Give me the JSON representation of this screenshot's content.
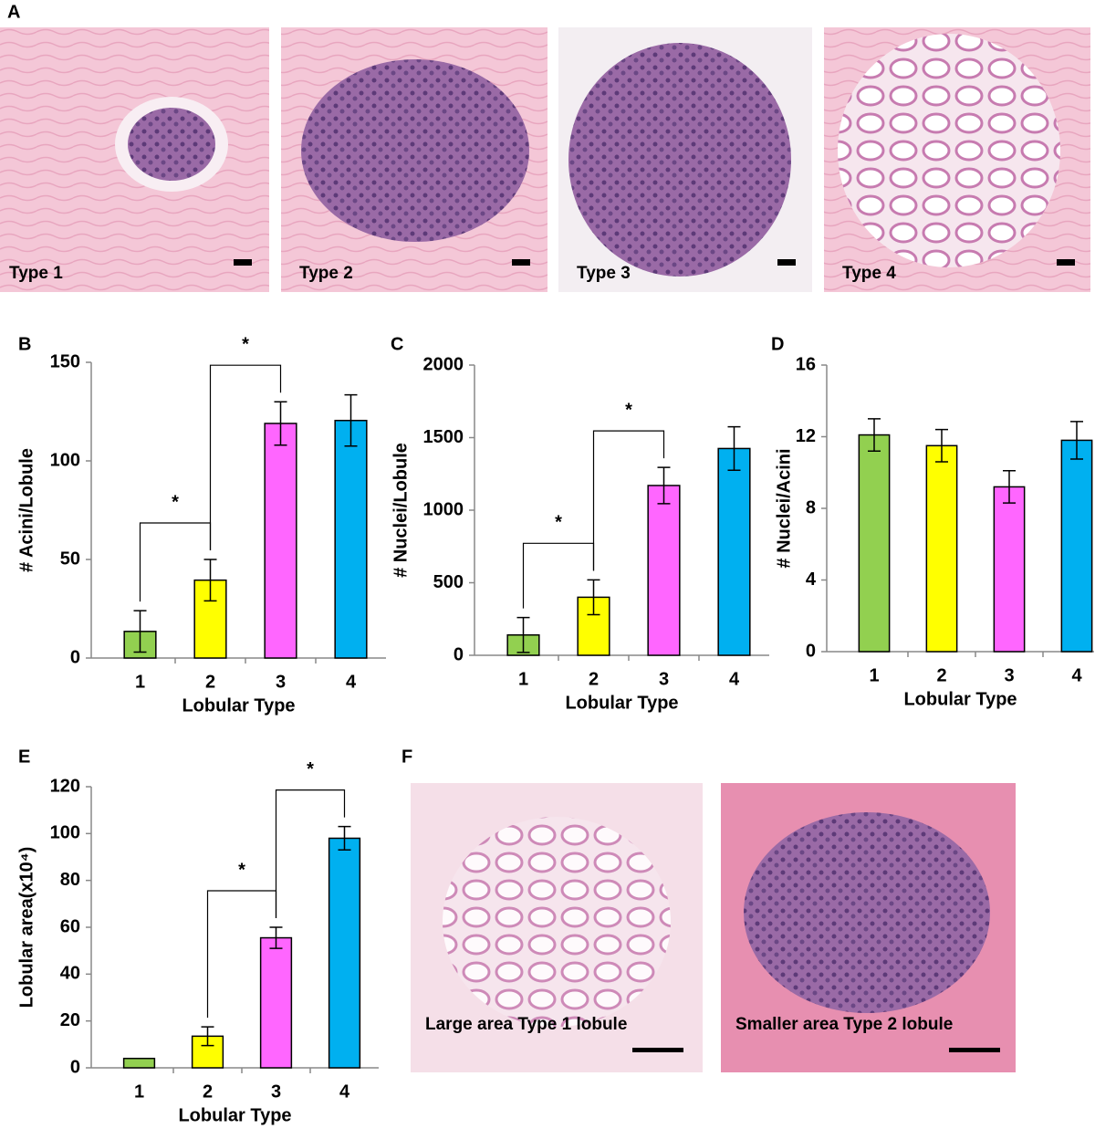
{
  "panel_labels": [
    "A",
    "B",
    "C",
    "D",
    "E",
    "F"
  ],
  "images_a": [
    "Type 1",
    "Type 2",
    "Type 3",
    "Type 4"
  ],
  "images_f": [
    "Large  area Type 1 lobule",
    "Smaller  area Type 2 lobule"
  ],
  "chart_data": [
    {
      "type": "bar",
      "categories": [
        "1",
        "2",
        "3",
        "4"
      ],
      "values": [
        13.5,
        39.5,
        119,
        120.5
      ],
      "errors": [
        10.5,
        10.5,
        11,
        13
      ],
      "colors": [
        "#92d050",
        "#ffff00",
        "#ff66ff",
        "#00b0f0"
      ],
      "ylim": [
        0,
        150
      ],
      "yticks": [
        0,
        50,
        100,
        150
      ],
      "xlabel": "Lobular Type",
      "ylabel": "# Acini/Lobule",
      "comparisons": [
        {
          "label": "*",
          "categories": [
            "1",
            "2"
          ]
        },
        {
          "label": "*",
          "categories": [
            "2",
            "3"
          ]
        }
      ]
    },
    {
      "type": "bar",
      "categories": [
        "1",
        "2",
        "3",
        "4"
      ],
      "values": [
        140,
        400,
        1170,
        1425
      ],
      "errors": [
        120,
        120,
        125,
        150
      ],
      "colors": [
        "#92d050",
        "#ffff00",
        "#ff66ff",
        "#00b0f0"
      ],
      "ylim": [
        0,
        2000
      ],
      "yticks": [
        0,
        500,
        1000,
        1500,
        2000
      ],
      "xlabel": "Lobular Type",
      "ylabel": "# Nuclei/Lobule",
      "comparisons": [
        {
          "label": "*",
          "categories": [
            "1",
            "2"
          ]
        },
        {
          "label": "*",
          "categories": [
            "2",
            "3"
          ]
        }
      ]
    },
    {
      "type": "bar",
      "categories": [
        "1",
        "2",
        "3",
        "4"
      ],
      "values": [
        12.1,
        11.5,
        9.2,
        11.8
      ],
      "errors": [
        0.9,
        0.9,
        0.9,
        1.05
      ],
      "colors": [
        "#92d050",
        "#ffff00",
        "#ff66ff",
        "#00b0f0"
      ],
      "ylim": [
        0,
        16
      ],
      "yticks": [
        0,
        4,
        8,
        12,
        16
      ],
      "xlabel": "Lobular Type",
      "ylabel": "# Nuclei/Acini",
      "comparisons": []
    },
    {
      "type": "bar",
      "categories": [
        "1",
        "2",
        "3",
        "4"
      ],
      "values": [
        4,
        13.5,
        55.5,
        98
      ],
      "errors": [
        null,
        4,
        4.5,
        5
      ],
      "colors": [
        "#92d050",
        "#ffff00",
        "#ff66ff",
        "#00b0f0"
      ],
      "ylim": [
        0,
        120
      ],
      "yticks": [
        0,
        20,
        40,
        60,
        80,
        100,
        120
      ],
      "xlabel": "Lobular Type",
      "ylabel": "Lobular area(x10⁴)",
      "comparisons": [
        {
          "label": "*",
          "categories": [
            "2",
            "3"
          ]
        },
        {
          "label": "*",
          "categories": [
            "3",
            "4"
          ]
        }
      ]
    }
  ]
}
